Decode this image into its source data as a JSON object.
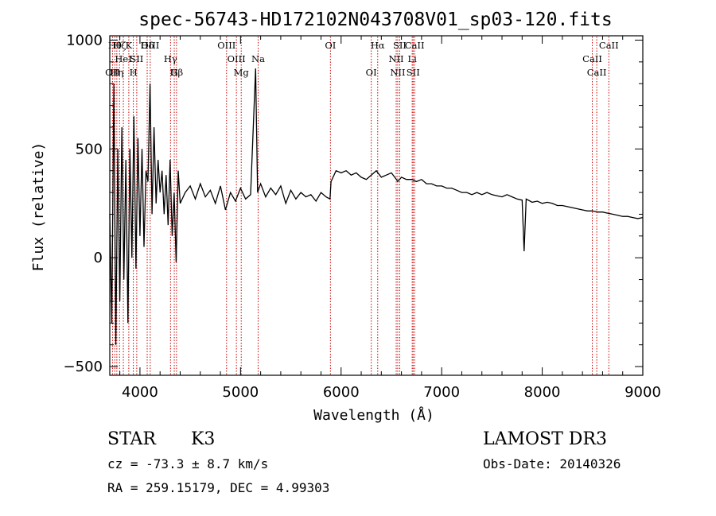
{
  "chart_data": {
    "type": "line",
    "title": "spec-56743-HD172102N043708V01_sp03-120.fits",
    "xlabel": "Wavelength (Å)",
    "ylabel": "Flux (relative)",
    "xlim": [
      3700,
      9000
    ],
    "ylim": [
      -540,
      1020
    ],
    "x_ticks": [
      4000,
      5000,
      6000,
      7000,
      8000,
      9000
    ],
    "y_ticks": [
      -500,
      0,
      500,
      1000
    ],
    "series": [
      {
        "name": "flux",
        "x": [
          3700,
          3720,
          3740,
          3760,
          3780,
          3800,
          3820,
          3840,
          3860,
          3880,
          3900,
          3920,
          3940,
          3960,
          3980,
          4000,
          4020,
          4040,
          4060,
          4080,
          4100,
          4120,
          4140,
          4160,
          4180,
          4200,
          4220,
          4240,
          4260,
          4280,
          4300,
          4320,
          4340,
          4360,
          4380,
          4400,
          4450,
          4500,
          4550,
          4600,
          4650,
          4700,
          4750,
          4800,
          4850,
          4900,
          4950,
          5000,
          5050,
          5100,
          5150,
          5170,
          5200,
          5250,
          5300,
          5350,
          5400,
          5450,
          5500,
          5550,
          5600,
          5650,
          5700,
          5750,
          5800,
          5850,
          5890,
          5900,
          5950,
          6000,
          6050,
          6100,
          6150,
          6200,
          6250,
          6300,
          6350,
          6400,
          6450,
          6500,
          6550,
          6563,
          6600,
          6650,
          6700,
          6750,
          6800,
          6850,
          6900,
          6950,
          7000,
          7050,
          7100,
          7150,
          7200,
          7250,
          7300,
          7350,
          7400,
          7450,
          7500,
          7550,
          7600,
          7650,
          7700,
          7750,
          7800,
          7820,
          7840,
          7880,
          7900,
          7950,
          8000,
          8050,
          8100,
          8150,
          8200,
          8250,
          8300,
          8350,
          8400,
          8450,
          8500,
          8550,
          8600,
          8650,
          8700,
          8750,
          8800,
          8850,
          8900,
          8950,
          9000
        ],
        "y": [
          200,
          -300,
          800,
          -400,
          500,
          -200,
          600,
          -100,
          450,
          -300,
          500,
          0,
          650,
          -50,
          550,
          100,
          500,
          50,
          400,
          350,
          800,
          200,
          600,
          250,
          450,
          300,
          400,
          200,
          380,
          150,
          450,
          100,
          300,
          -20,
          400,
          250,
          300,
          330,
          270,
          340,
          280,
          310,
          250,
          330,
          220,
          300,
          260,
          320,
          270,
          290,
          870,
          300,
          340,
          280,
          320,
          290,
          330,
          250,
          310,
          270,
          300,
          280,
          290,
          260,
          300,
          280,
          270,
          350,
          400,
          390,
          400,
          380,
          390,
          370,
          360,
          380,
          400,
          370,
          380,
          390,
          360,
          350,
          370,
          360,
          360,
          350,
          360,
          340,
          340,
          330,
          330,
          320,
          320,
          310,
          300,
          300,
          290,
          300,
          290,
          300,
          290,
          285,
          280,
          290,
          280,
          270,
          265,
          30,
          270,
          260,
          255,
          260,
          250,
          255,
          250,
          240,
          240,
          235,
          230,
          225,
          220,
          215,
          215,
          210,
          210,
          205,
          200,
          195,
          190,
          190,
          185,
          180,
          185
        ]
      }
    ],
    "spectral_lines": [
      {
        "label": "OII",
        "wavelength": 3727,
        "row": 2
      },
      {
        "label": "Hθ",
        "wavelength": 3750,
        "row": 0
      },
      {
        "label": "Hη",
        "wavelength": 3770,
        "row": 2
      },
      {
        "label": "Hζ",
        "wavelength": 3797,
        "row": 0
      },
      {
        "label": "HeI",
        "wavelength": 3835,
        "row": 1
      },
      {
        "label": "K",
        "wavelength": 3889,
        "row": 0
      },
      {
        "label": "H",
        "wavelength": 3934,
        "row": 2
      },
      {
        "label": "SII",
        "wavelength": 3968,
        "row": 1
      },
      {
        "label": "Hδ",
        "wavelength": 4072,
        "row": 0
      },
      {
        "label": "OIII",
        "wavelength": 4102,
        "row": 0
      },
      {
        "label": "Hγ",
        "wavelength": 4304,
        "row": 1
      },
      {
        "label": "G",
        "wavelength": 4341,
        "row": 2
      },
      {
        "label": "Hβ",
        "wavelength": 4363,
        "row": 2
      },
      {
        "label": "OIII",
        "wavelength": 4861,
        "row": 0
      },
      {
        "label": "OIII",
        "wavelength": 4959,
        "row": 1
      },
      {
        "label": "Mg",
        "wavelength": 5007,
        "row": 2
      },
      {
        "label": "Na",
        "wavelength": 5175,
        "row": 1
      },
      {
        "label": "OI",
        "wavelength": 5894,
        "row": 0
      },
      {
        "label": "OI",
        "wavelength": 6300,
        "row": 2
      },
      {
        "label": "Hα",
        "wavelength": 6364,
        "row": 0
      },
      {
        "label": "NII",
        "wavelength": 6548,
        "row": 1
      },
      {
        "label": "NII",
        "wavelength": 6563,
        "row": 2
      },
      {
        "label": "SII",
        "wavelength": 6583,
        "row": 0
      },
      {
        "label": "Li",
        "wavelength": 6707,
        "row": 1
      },
      {
        "label": "SII",
        "wavelength": 6716,
        "row": 2
      },
      {
        "label": "CaII",
        "wavelength": 6731,
        "row": 0
      },
      {
        "label": "CaII",
        "wavelength": 8498,
        "row": 1
      },
      {
        "label": "CaII",
        "wavelength": 8542,
        "row": 2
      },
      {
        "label": "CaII",
        "wavelength": 8662,
        "row": 0
      }
    ]
  },
  "info": {
    "class_label": "STAR",
    "subclass": "K3",
    "survey": "LAMOST DR3",
    "cz": "cz = -73.3 ± 8.7 km/s",
    "obs_date": "Obs-Date: 20140326",
    "coords": "RA = 259.15179, DEC =   4.99303"
  },
  "colors": {
    "line_marker": "#cc0000",
    "spectrum": "#000000"
  }
}
